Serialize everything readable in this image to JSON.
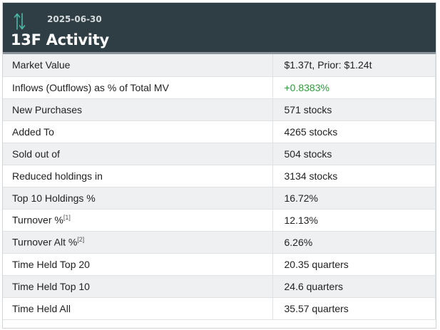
{
  "header": {
    "date": "2025-06-30",
    "title": "13F Activity",
    "icon": "up-down-arrows-icon",
    "background_color": "#2f3d44",
    "icon_color": "#4cb8a6"
  },
  "rows": [
    {
      "label": "Market Value",
      "value": "$1.37t, Prior: $1.24t"
    },
    {
      "label": "Inflows (Outflows) as % of Total MV",
      "value": "+0.8383%",
      "value_color": "#2e9b3a"
    },
    {
      "label": "New Purchases",
      "value": "571 stocks"
    },
    {
      "label": "Added To",
      "value": "4265 stocks"
    },
    {
      "label": "Sold out of",
      "value": "504 stocks"
    },
    {
      "label": "Reduced holdings in",
      "value": "3134 stocks"
    },
    {
      "label": "Top 10 Holdings %",
      "value": "16.72%"
    },
    {
      "label": "Turnover %",
      "footnote": "[1]",
      "value": "12.13%"
    },
    {
      "label": "Turnover Alt %",
      "footnote": "[2]",
      "value": "6.26%"
    },
    {
      "label": "Time Held Top 20",
      "value": "20.35 quarters"
    },
    {
      "label": "Time Held Top 10",
      "value": "24.6 quarters"
    },
    {
      "label": "Time Held All",
      "value": "35.57 quarters"
    }
  ]
}
